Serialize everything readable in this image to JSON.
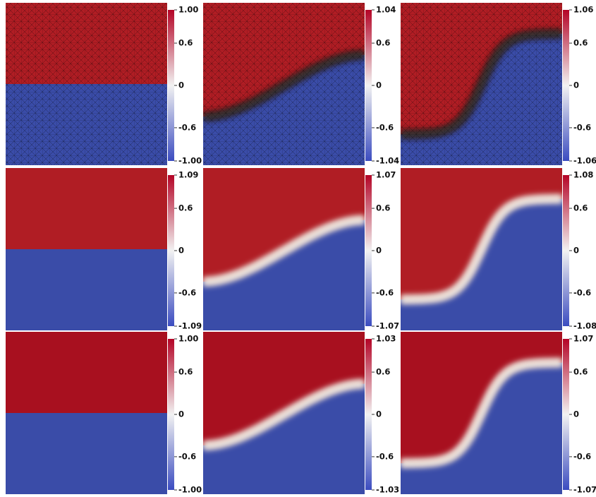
{
  "panels": [
    {
      "colorbar": {
        "ticks": [
          "1.00",
          "0.6",
          "0",
          "-0.6",
          "-1.00"
        ]
      }
    },
    {
      "colorbar": {
        "ticks": [
          "1.04",
          "0.6",
          "0",
          "-0.6",
          "-1.04"
        ]
      }
    },
    {
      "colorbar": {
        "ticks": [
          "1.06",
          "0.6",
          "0",
          "-0.6",
          "-1.06"
        ]
      }
    },
    {
      "colorbar": {
        "ticks": [
          "1.09",
          "0.6",
          "0",
          "-0.6",
          "-1.09"
        ]
      }
    },
    {
      "colorbar": {
        "ticks": [
          "1.07",
          "0.6",
          "0",
          "-0.6",
          "-1.07"
        ]
      }
    },
    {
      "colorbar": {
        "ticks": [
          "1.08",
          "0.6",
          "0",
          "-0.6",
          "-1.08"
        ]
      }
    },
    {
      "colorbar": {
        "ticks": [
          "1.00",
          "0.6",
          "0",
          "-0.6",
          "-1.00"
        ]
      }
    },
    {
      "colorbar": {
        "ticks": [
          "1.03",
          "0.6",
          "0",
          "-0.6",
          "-1.03"
        ]
      }
    },
    {
      "colorbar": {
        "ticks": [
          "1.07",
          "0.6",
          "0",
          "-0.6",
          "-1.07"
        ]
      }
    }
  ]
}
